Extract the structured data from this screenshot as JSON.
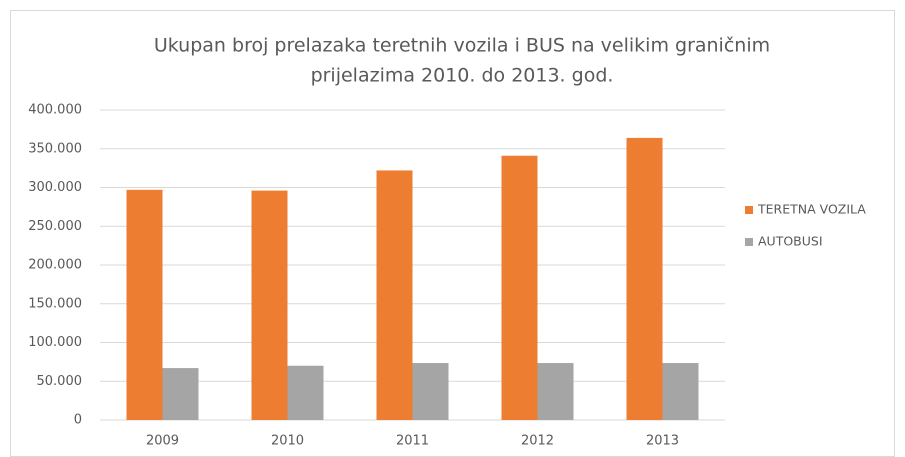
{
  "chart_data": {
    "type": "bar",
    "title": [
      "Ukupan broj prelazaka teretnih vozila i BUS na  velikim graničnim",
      "prijelazima 2010. do 2013. god."
    ],
    "categories": [
      "2009",
      "2010",
      "2011",
      "2012",
      "2013"
    ],
    "series": [
      {
        "name": "TERETNA VOZILA",
        "color": "#ed7d31",
        "values": [
          297000,
          296000,
          322000,
          341000,
          364000
        ]
      },
      {
        "name": "AUTOBUSI",
        "color": "#a5a5a5",
        "values": [
          67000,
          70000,
          73500,
          73500,
          73500
        ]
      }
    ],
    "ylim": [
      0,
      400000
    ],
    "yticks": [
      0,
      {
        "value": 50000,
        "label": "50.000"
      },
      {
        "value": 100000,
        "label": "100.000"
      },
      {
        "value": 150000,
        "label": "150.000"
      },
      {
        "value": 200000,
        "label": "200.000"
      },
      {
        "value": 250000,
        "label": "250.000"
      },
      {
        "value": 300000,
        "label": "300.000"
      },
      {
        "value": 350000,
        "label": "350.000"
      },
      {
        "value": 400000,
        "label": "400.000"
      }
    ],
    "grid": true,
    "legend": "right"
  }
}
